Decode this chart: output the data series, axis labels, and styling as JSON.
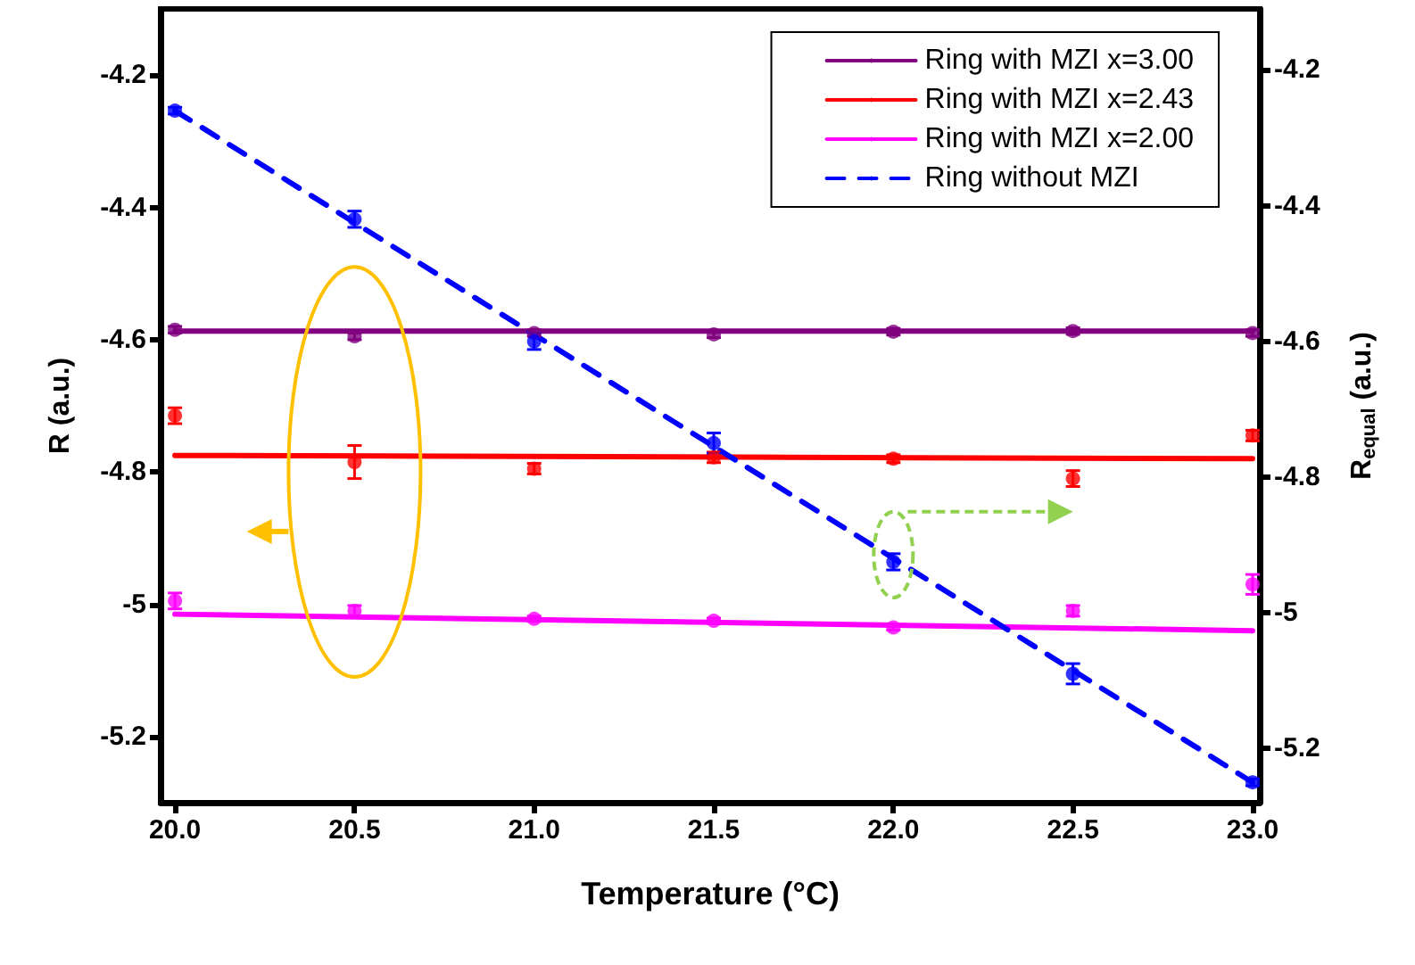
{
  "chart_data": {
    "type": "line",
    "xlabel": "Temperature (°C)",
    "ylabel": "R (a.u.)",
    "y2label": "R$_{equal}$ (a.u.)",
    "xlim": [
      19.96,
      23.02
    ],
    "xticks": [
      {
        "value": 20,
        "label": "20.0"
      },
      {
        "value": 20.5,
        "label": "20.5"
      },
      {
        "value": 21,
        "label": "21.0"
      },
      {
        "value": 21.5,
        "label": "21.5"
      },
      {
        "value": 22,
        "label": "22.0"
      },
      {
        "value": 22.5,
        "label": "22.5"
      },
      {
        "value": 23,
        "label": "23.0"
      }
    ],
    "ylim": [
      -5.3,
      -4.1
    ],
    "yticks": [
      -5.2,
      -5.0,
      -4.8,
      -4.6,
      -4.4,
      -4.2
    ],
    "y2lim": [
      -5.28,
      -4.11
    ],
    "y2ticks": [
      -5.2,
      -5.0,
      -4.8,
      -4.6,
      -4.4,
      -4.2
    ],
    "grid": false,
    "legend": "top right",
    "series": [
      {
        "name": "Ring with MZI x=3.00",
        "color": "#800080",
        "marker": "none",
        "x": [
          20,
          23
        ],
        "values": [
          -4.587,
          -4.587
        ]
      },
      {
        "name": "Ring with MZI x=2.43",
        "color": "#ff0000",
        "marker": "none",
        "x": [
          20,
          23
        ],
        "values": [
          -4.775,
          -4.78
        ]
      },
      {
        "name": "Ring with MZI x=2.00",
        "color": "#ff00ff",
        "marker": "none",
        "x": [
          20,
          23
        ],
        "values": [
          -5.015,
          -5.04
        ]
      },
      {
        "name": "Ring without MZI",
        "color": "#0000ff",
        "marker": "none",
        "line_style": "dashed",
        "axis": "y2",
        "x": [
          20,
          23
        ],
        "values": [
          -4.26,
          -5.25
        ]
      },
      {
        "type": "scatter",
        "color": "#800080",
        "marker": "circle",
        "x": [
          20,
          20.5,
          21,
          21.5,
          22,
          22.5,
          23
        ],
        "values": [
          -4.585,
          -4.595,
          -4.59,
          -4.592,
          -4.588,
          -4.587,
          -4.59
        ],
        "errors": [
          0.005,
          0.005,
          0.005,
          0.005,
          0.005,
          0.005,
          0.005
        ]
      },
      {
        "type": "scatter",
        "color": "#ff0000",
        "marker": "circle",
        "x": [
          20,
          20.5,
          21,
          21.5,
          22,
          22.5,
          23
        ],
        "values": [
          -4.715,
          -4.785,
          -4.795,
          -4.778,
          -4.78,
          -4.81,
          -4.745
        ],
        "errors": [
          0.012,
          0.025,
          0.008,
          0.008,
          0.006,
          0.012,
          0.008
        ]
      },
      {
        "type": "scatter",
        "color": "#ff00ff",
        "marker": "circle",
        "x": [
          20,
          20.5,
          21,
          21.5,
          22,
          22.5,
          23
        ],
        "values": [
          -4.995,
          -5.01,
          -5.022,
          -5.025,
          -5.035,
          -5.01,
          -4.97
        ],
        "errors": [
          0.012,
          0.008,
          0.004,
          0.004,
          0.004,
          0.008,
          0.015
        ]
      },
      {
        "type": "scatter",
        "color": "#0000ff",
        "marker": "circle",
        "axis": "y2",
        "x": [
          20,
          20.5,
          21,
          21.5,
          22,
          22.5,
          23
        ],
        "values": [
          -4.26,
          -4.42,
          -4.6,
          -4.75,
          -4.925,
          -5.09,
          -5.25
        ],
        "errors": [
          0.005,
          0.012,
          0.012,
          0.015,
          0.012,
          0.015,
          0.005
        ]
      }
    ]
  }
}
